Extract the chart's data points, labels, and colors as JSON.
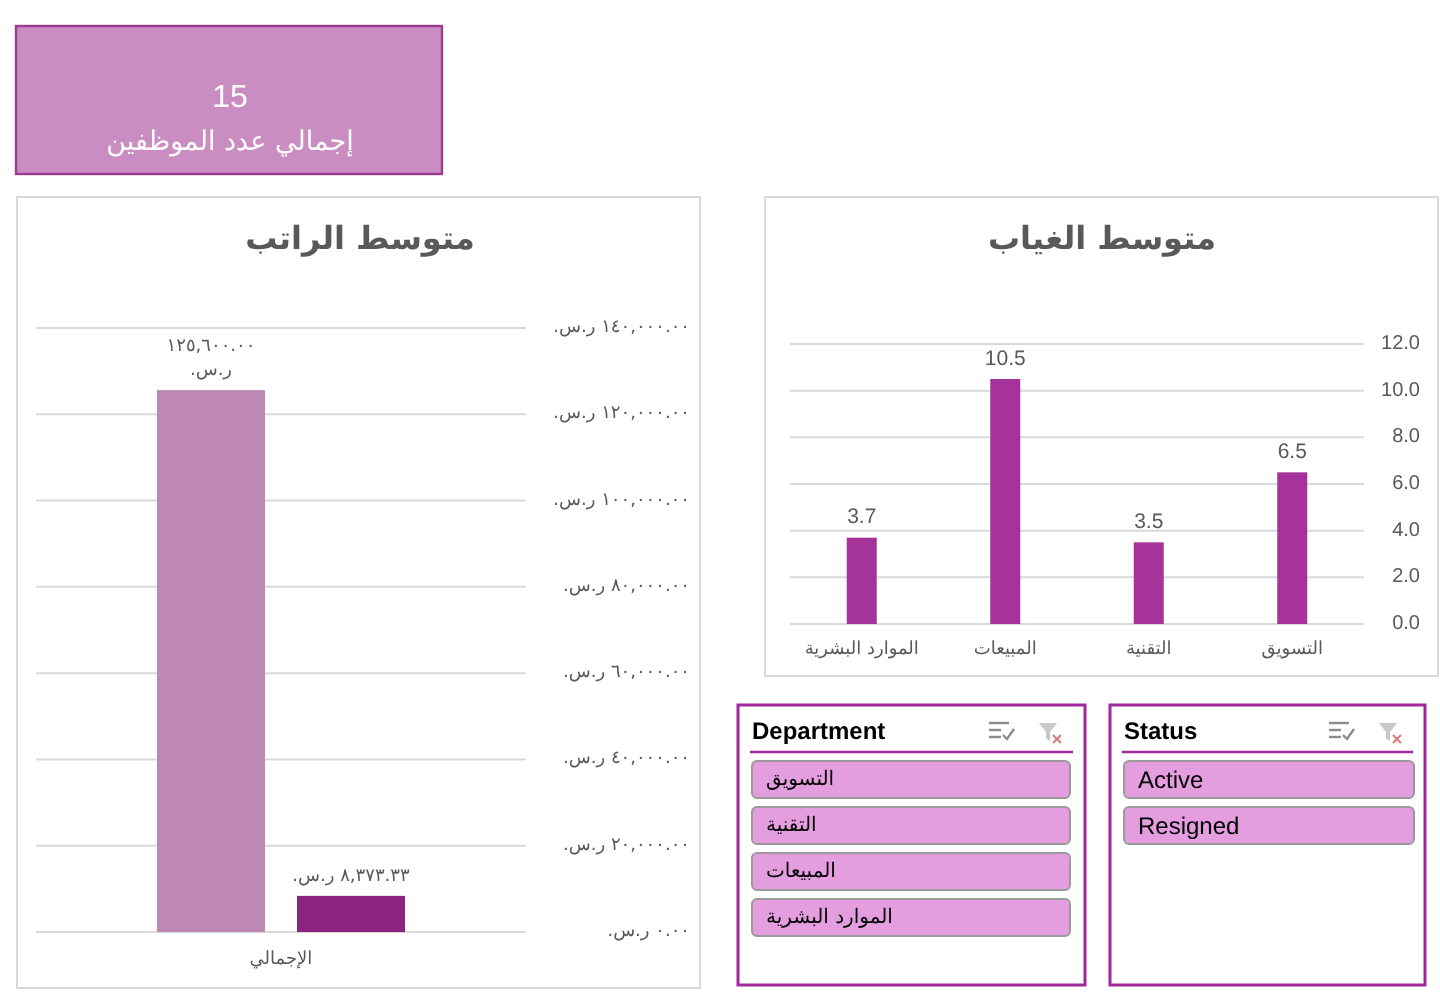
{
  "chart_data": [
    {
      "type": "other",
      "title": "إجمالي عدد الموظفين",
      "annotations": [
        "15"
      ]
    },
    {
      "type": "bar",
      "title": "متوسط الراتب",
      "categories": [
        "الإجمالي"
      ],
      "series": [
        {
          "color": "#bd88b4",
          "values": [
            125600
          ],
          "value_labels": [
            "١٢٥,٦٠٠.٠٠ ر.س."
          ]
        },
        {
          "color": "#8c237f",
          "values": [
            8373.33
          ],
          "value_labels": [
            "٨,٣٧٣.٣٣ ر.س."
          ]
        }
      ],
      "ylim": [
        0,
        140000
      ],
      "yticks": [
        {
          "value": 0,
          "label": "٠.٠٠ ر.س."
        },
        {
          "value": 20000,
          "label": "٢٠,٠٠٠.٠٠ ر.س."
        },
        {
          "value": 40000,
          "label": "٤٠,٠٠٠.٠٠ ر.س."
        },
        {
          "value": 60000,
          "label": "٦٠,٠٠٠.٠٠ ر.س."
        },
        {
          "value": 80000,
          "label": "٨٠,٠٠٠.٠٠ ر.س."
        },
        {
          "value": 100000,
          "label": "١٠٠,٠٠٠.٠٠ ر.س."
        },
        {
          "value": 120000,
          "label": "١٢٠,٠٠٠.٠٠ ر.س."
        },
        {
          "value": 140000,
          "label": "١٤٠,٠٠٠.٠٠ ر.س."
        }
      ],
      "grid": "y"
    },
    {
      "type": "bar",
      "title": "متوسط الغياب",
      "categories": [
        "الموارد البشرية",
        "المبيعات",
        "التقنية",
        "التسويق"
      ],
      "values": [
        3.7,
        10.5,
        3.5,
        6.5
      ],
      "color": "#a63399",
      "data_labels": true,
      "ylim": [
        0,
        12
      ],
      "yticks": [
        {
          "value": 0,
          "label": "0.0"
        },
        {
          "value": 2,
          "label": "2.0"
        },
        {
          "value": 4,
          "label": "4.0"
        },
        {
          "value": 6,
          "label": "6.0"
        },
        {
          "value": 8,
          "label": "8.0"
        },
        {
          "value": 10,
          "label": "10.0"
        },
        {
          "value": 12,
          "label": "12.0"
        }
      ],
      "grid": "y"
    },
    {
      "type": "other",
      "title": "Department",
      "annotations": [
        "التسويق",
        "التقنية",
        "المبيعات",
        "الموارد البشرية"
      ]
    },
    {
      "type": "other",
      "title": "Status",
      "annotations": [
        "Active",
        "Resigned"
      ]
    }
  ]
}
